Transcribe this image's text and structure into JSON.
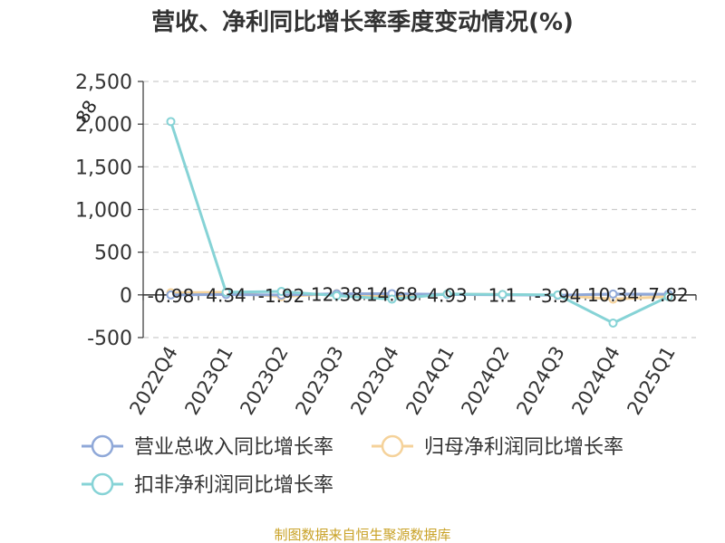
{
  "chart_data": {
    "type": "line",
    "title": "营收、净利同比增长率季度变动情况(%)",
    "categories": [
      "2022Q4",
      "2023Q1",
      "2023Q2",
      "2023Q3",
      "2023Q4",
      "2024Q1",
      "2024Q2",
      "2024Q3",
      "2024Q4",
      "2025Q1"
    ],
    "ylim": [
      -500,
      2500
    ],
    "yticks": [
      -500,
      0,
      500,
      1000,
      1500,
      2000,
      2500
    ],
    "ytick_labels": [
      "-500",
      "0",
      "500",
      "1,000",
      "1,500",
      "2,000",
      "2,500"
    ],
    "grid": true,
    "legend_position": "bottom",
    "series": [
      {
        "name": "营业总收入同比增长率",
        "color": "#8fa8d8",
        "values": [
          -0.98,
          4.34,
          -1.92,
          12.38,
          14.68,
          4.93,
          1.1,
          -3.94,
          10.34,
          7.82
        ],
        "data_labels": [
          "-0.98",
          "4.34",
          "-1.92",
          "12.38",
          "14.68",
          "4.93",
          "1.1",
          "-3.94",
          "10.34",
          "7.82"
        ]
      },
      {
        "name": "归母净利润同比增长率",
        "color": "#f5d29a",
        "values": [
          25,
          30,
          -20,
          15,
          -25,
          10,
          5,
          -5,
          -50,
          -20
        ]
      },
      {
        "name": "扣非净利润同比增长率",
        "color": "#86d3d6",
        "values": [
          2030,
          30,
          40,
          -10,
          -50,
          10,
          5,
          0,
          -330,
          -20
        ]
      }
    ],
    "annotation": "88",
    "source": "制图数据来自恒生聚源数据库"
  }
}
